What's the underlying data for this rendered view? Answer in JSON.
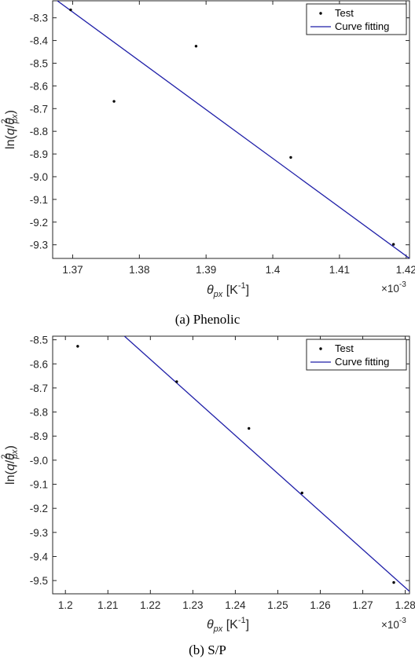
{
  "chart_data": [
    {
      "type": "scatter",
      "caption": "(a) Phenolic",
      "xlabel": {
        "main": "θ",
        "sub": "px",
        "unit_open": " [K",
        "unit_sup": "-1",
        "unit_close": "]"
      },
      "ylabel": {
        "main": "ln(q/θ",
        "sub": "px",
        "sup": "2",
        "close": ")"
      },
      "x_multiplier": {
        "base": "×10",
        "exp": "-3"
      },
      "xlim": [
        1.367,
        1.4205
      ],
      "ylim": [
        -9.36,
        -8.225
      ],
      "xticks": [
        1.37,
        1.38,
        1.39,
        1.4,
        1.41,
        1.42
      ],
      "xtick_labels": [
        "1.37",
        "1.38",
        "1.39",
        "1.4",
        "1.41",
        "1.42"
      ],
      "yticks": [
        -8.3,
        -8.4,
        -8.5,
        -8.6,
        -8.7,
        -8.8,
        -8.9,
        -9.0,
        -9.1,
        -9.2,
        -9.3
      ],
      "ytick_labels": [
        "-8.3",
        "-8.4",
        "-8.5",
        "-8.6",
        "-8.7",
        "-8.8",
        "-8.9",
        "-9.0",
        "-9.1",
        "-9.2",
        "-9.3"
      ],
      "grid": false,
      "legend_position": "top-right",
      "series": [
        {
          "name": "Test",
          "kind": "points",
          "color": "#000000",
          "x": [
            1.3697,
            1.3762,
            1.3885,
            1.4027,
            1.4181
          ],
          "y": [
            -8.265,
            -8.668,
            -8.425,
            -8.915,
            -9.298
          ]
        },
        {
          "name": "Curve fitting",
          "kind": "line",
          "color": "#1f1fa8",
          "x": [
            1.367,
            1.4205
          ],
          "y": [
            -8.21,
            -9.36
          ]
        }
      ]
    },
    {
      "type": "scatter",
      "caption": "(b) S/P",
      "xlabel": {
        "main": "θ",
        "sub": "px",
        "unit_open": " [K",
        "unit_sup": "-1",
        "unit_close": "]"
      },
      "ylabel": {
        "main": "ln(q/θ",
        "sub": "px",
        "sup": "2",
        "close": ")"
      },
      "x_multiplier": {
        "base": "×10",
        "exp": "-3"
      },
      "xlim": [
        1.197,
        1.281
      ],
      "ylim": [
        -9.555,
        -8.485
      ],
      "xticks": [
        1.2,
        1.21,
        1.22,
        1.23,
        1.24,
        1.25,
        1.26,
        1.27,
        1.28
      ],
      "xtick_labels": [
        "1.2",
        "1.21",
        "1.22",
        "1.23",
        "1.24",
        "1.25",
        "1.26",
        "1.27",
        "1.28"
      ],
      "yticks": [
        -8.5,
        -8.6,
        -8.7,
        -8.8,
        -8.9,
        -9.0,
        -9.1,
        -9.2,
        -9.3,
        -9.4,
        -9.5
      ],
      "ytick_labels": [
        "-8.5",
        "-8.6",
        "-8.7",
        "-8.8",
        "-8.9",
        "-9.0",
        "-9.1",
        "-9.2",
        "-9.3",
        "-9.4",
        "-9.5"
      ],
      "grid": false,
      "legend_position": "top-right",
      "series": [
        {
          "name": "Test",
          "kind": "points",
          "color": "#000000",
          "x": [
            1.2029,
            1.2262,
            1.2432,
            1.2557,
            1.2773
          ],
          "y": [
            -8.527,
            -8.674,
            -8.868,
            -9.136,
            -9.508
          ]
        },
        {
          "name": "Curve fitting",
          "kind": "line",
          "color": "#1f1fa8",
          "x": [
            1.2139,
            1.281
          ],
          "y": [
            -8.485,
            -9.545
          ]
        }
      ]
    }
  ]
}
